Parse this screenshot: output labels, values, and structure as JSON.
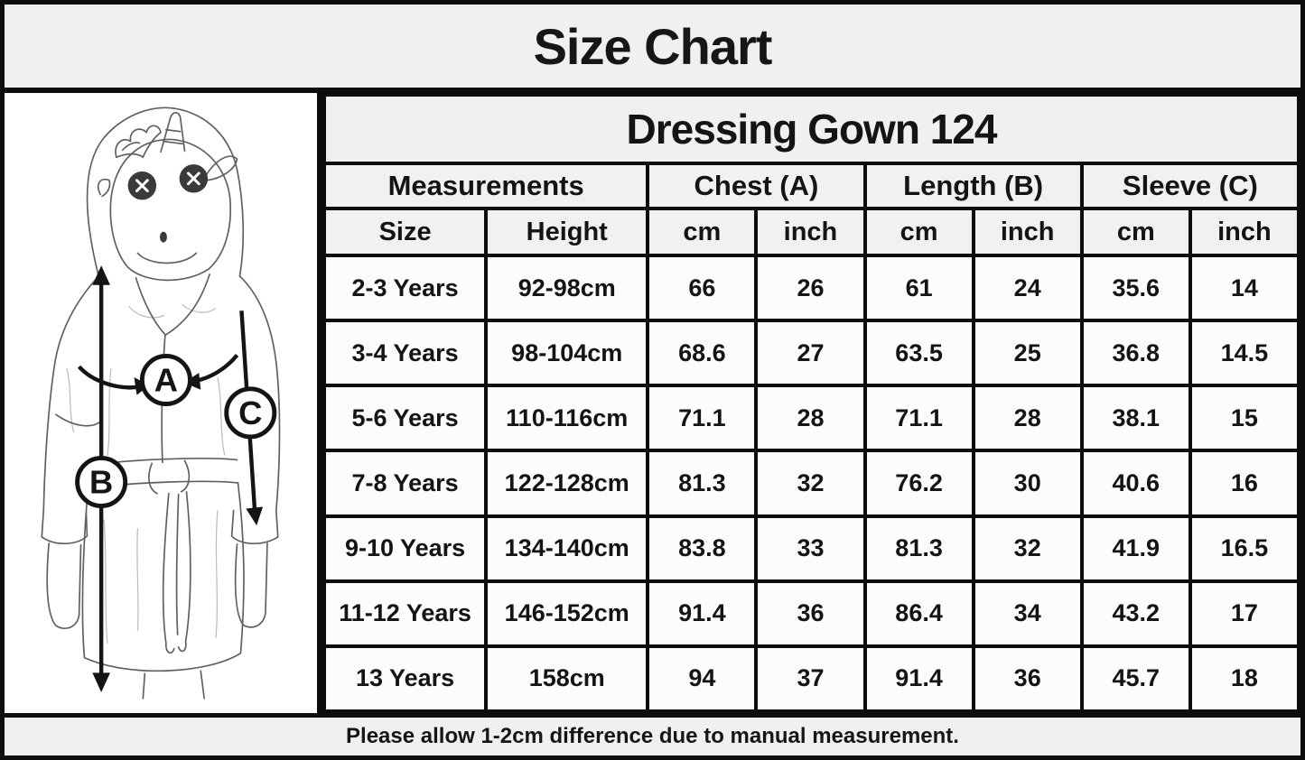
{
  "page": {
    "title": "Size Chart",
    "footer_note": "Please allow 1-2cm difference due to manual measurement."
  },
  "illustration": {
    "subject": "child wearing hooded unicorn dressing gown, sketch style",
    "chest_label": "A",
    "length_label": "B",
    "sleeve_label": "C"
  },
  "chart_data": {
    "type": "table",
    "title": "Size Chart",
    "product_title": "Dressing Gown 124",
    "group_headers": [
      "Measurements",
      "Chest (A)",
      "Length (B)",
      "Sleeve (C)"
    ],
    "sub_headers": [
      "Size",
      "Height",
      "cm",
      "inch",
      "cm",
      "inch",
      "cm",
      "inch"
    ],
    "rows": [
      [
        "2-3 Years",
        "92-98cm",
        "66",
        "26",
        "61",
        "24",
        "35.6",
        "14"
      ],
      [
        "3-4 Years",
        "98-104cm",
        "68.6",
        "27",
        "63.5",
        "25",
        "36.8",
        "14.5"
      ],
      [
        "5-6 Years",
        "110-116cm",
        "71.1",
        "28",
        "71.1",
        "28",
        "38.1",
        "15"
      ],
      [
        "7-8 Years",
        "122-128cm",
        "81.3",
        "32",
        "76.2",
        "30",
        "40.6",
        "16"
      ],
      [
        "9-10 Years",
        "134-140cm",
        "83.8",
        "33",
        "81.3",
        "32",
        "41.9",
        "16.5"
      ],
      [
        "11-12 Years",
        "146-152cm",
        "91.4",
        "36",
        "86.4",
        "34",
        "43.2",
        "17"
      ],
      [
        "13 Years",
        "158cm",
        "94",
        "37",
        "91.4",
        "36",
        "45.7",
        "18"
      ]
    ],
    "footer": "Please allow 1-2cm difference due to manual measurement."
  },
  "colors": {
    "border": "#0d0d0d",
    "band_bg": "#f0f0f0",
    "header_cell_bg": "#f1f1f1",
    "data_cell_bg": "#fcfcfc",
    "text": "#141414",
    "sketch_stroke": "#5f5f5f"
  }
}
